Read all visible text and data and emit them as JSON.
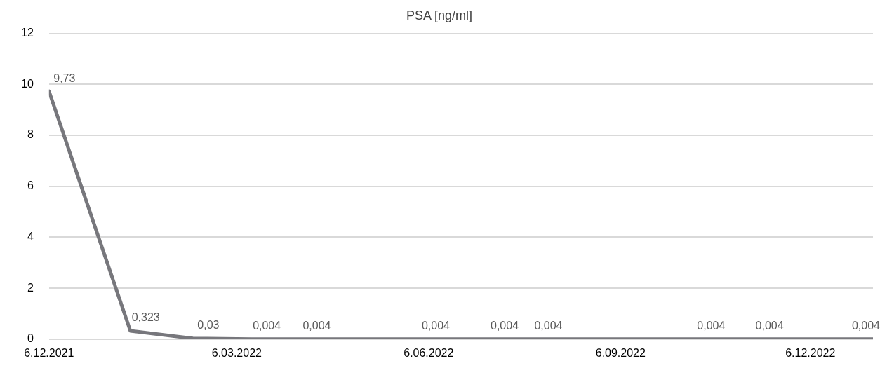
{
  "chart_data": {
    "type": "line",
    "title": "PSA [ng/ml]",
    "x": [
      "2021-12-06",
      "2022-01-14",
      "2022-02-13",
      "2022-03-13",
      "2022-04-06",
      "2022-06-02",
      "2022-07-05",
      "2022-07-26",
      "2022-10-12",
      "2022-11-09",
      "2023-01-05"
    ],
    "series": [
      {
        "color": "#77777c",
        "values": [
          9.73,
          0.323,
          0.03,
          0.004,
          0.004,
          0.004,
          0.004,
          0.004,
          0.004,
          0.004,
          0.004
        ],
        "value_labels": [
          "9,73",
          "0,323",
          "0,03",
          "0,004",
          "0,004",
          "0,004",
          "0,004",
          "0,004",
          "0,004",
          "0,004",
          "0,004"
        ]
      }
    ],
    "xlim": [
      "2021-12-06",
      "2023-01-05"
    ],
    "xticks": [
      {
        "value": "2021-12-06",
        "label": "6.12.2021"
      },
      {
        "value": "2022-03-06",
        "label": "6.03.2022"
      },
      {
        "value": "2022-06-06",
        "label": "6.06.2022"
      },
      {
        "value": "2022-09-06",
        "label": "6.09.2022"
      },
      {
        "value": "2022-12-06",
        "label": "6.12.2022"
      }
    ],
    "ylim": [
      0,
      12
    ],
    "yticks": [
      0,
      2,
      4,
      6,
      8,
      10,
      12
    ],
    "grid": "y",
    "marker": "none",
    "line_style": "solid",
    "legend": false
  }
}
